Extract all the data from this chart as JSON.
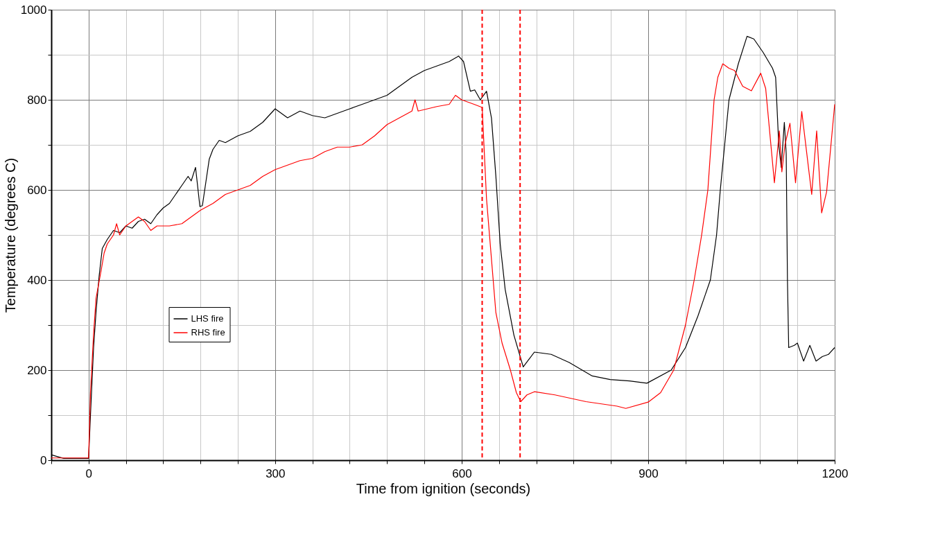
{
  "chart_data": {
    "type": "line",
    "xlabel": "Time from ignition (seconds)",
    "ylabel": "Temperature (degrees C)",
    "xlim": [
      -60,
      1200
    ],
    "ylim": [
      0,
      1000
    ],
    "xticks": [
      {
        "value": -60,
        "label": null
      },
      0,
      {
        "value": 60,
        "label": null
      },
      {
        "value": 120,
        "label": null
      },
      {
        "value": 180,
        "label": null
      },
      {
        "value": 240,
        "label": null
      },
      300,
      {
        "value": 360,
        "label": null
      },
      {
        "value": 420,
        "label": null
      },
      {
        "value": 480,
        "label": null
      },
      {
        "value": 540,
        "label": null
      },
      600,
      {
        "value": 660,
        "label": null
      },
      {
        "value": 720,
        "label": null
      },
      {
        "value": 780,
        "label": null
      },
      {
        "value": 840,
        "label": null
      },
      900,
      {
        "value": 960,
        "label": null
      },
      {
        "value": 1020,
        "label": null
      },
      {
        "value": 1080,
        "label": null
      },
      {
        "value": 1140,
        "label": null
      },
      1200
    ],
    "yticks": [
      0,
      {
        "value": 100,
        "label": null
      },
      200,
      {
        "value": 300,
        "label": null
      },
      400,
      {
        "value": 500,
        "label": null
      },
      600,
      {
        "value": 700,
        "label": null
      },
      800,
      {
        "value": 900,
        "label": null
      },
      1000
    ],
    "grid": true,
    "legend": "left",
    "ref_lines": [
      {
        "axis": "x",
        "value": 633,
        "color": "#ff0000",
        "line_style": "dashed"
      },
      {
        "axis": "x",
        "value": 694,
        "color": "#ff0000",
        "line_style": "dashed"
      }
    ],
    "series": [
      {
        "name": "LHS fire",
        "color": "#000000",
        "x": [
          -60,
          -50,
          -40,
          0,
          3,
          8,
          12,
          17,
          22,
          30,
          40,
          50,
          60,
          70,
          80,
          90,
          100,
          110,
          120,
          130,
          140,
          150,
          160,
          165,
          172,
          179,
          183,
          194,
          200,
          210,
          220,
          240,
          260,
          280,
          300,
          310,
          320,
          340,
          360,
          380,
          400,
          420,
          440,
          460,
          480,
          500,
          520,
          540,
          560,
          580,
          595,
          603,
          614,
          621,
          630,
          640,
          648,
          655,
          662,
          670,
          684,
          699,
          717,
          744,
          773,
          810,
          839,
          870,
          898,
          937,
          960,
          980,
          1000,
          1010,
          1016,
          1023,
          1030,
          1045,
          1059,
          1070,
          1085,
          1100,
          1105,
          1110,
          1114,
          1119,
          1122,
          1124,
          1126,
          1135,
          1140,
          1150,
          1160,
          1170,
          1180,
          1190,
          1200
        ],
        "values": [
          12,
          8,
          4,
          4,
          100,
          250,
          330,
          410,
          470,
          490,
          510,
          505,
          520,
          515,
          530,
          535,
          525,
          545,
          560,
          570,
          590,
          610,
          630,
          620,
          650,
          563,
          565,
          668,
          690,
          710,
          705,
          720,
          730,
          750,
          780,
          770,
          760,
          775,
          765,
          760,
          770,
          780,
          790,
          800,
          810,
          830,
          850,
          865,
          875,
          885,
          897,
          885,
          819,
          822,
          800,
          819,
          759,
          631,
          480,
          379,
          278,
          207,
          240,
          235,
          217,
          187,
          179,
          176,
          171,
          200,
          250,
          320,
          400,
          500,
          600,
          700,
          800,
          880,
          941,
          935,
          905,
          870,
          850,
          700,
          650,
          750,
          680,
          400,
          250,
          255,
          260,
          220,
          255,
          220,
          230,
          235,
          250
        ]
      },
      {
        "name": "RHS fire",
        "color": "#ff0000",
        "x": [
          -60,
          -40,
          0,
          3,
          8,
          12,
          20,
          25,
          30,
          40,
          45,
          50,
          60,
          70,
          80,
          90,
          100,
          110,
          130,
          150,
          170,
          180,
          200,
          220,
          240,
          260,
          280,
          300,
          320,
          340,
          360,
          380,
          400,
          420,
          440,
          460,
          480,
          500,
          520,
          525,
          530,
          560,
          580,
          590,
          600,
          620,
          633,
          640,
          655,
          665,
          678,
          688,
          695,
          705,
          717,
          750,
          800,
          850,
          864,
          900,
          920,
          941,
          960,
          974,
          986,
          996,
          1001,
          1006,
          1012,
          1020,
          1030,
          1039,
          1052,
          1066,
          1081,
          1089,
          1103,
          1111,
          1115,
          1120,
          1128,
          1137,
          1147,
          1163,
          1171,
          1179,
          1187,
          1200
        ],
        "values": [
          5,
          5,
          5,
          150,
          280,
          360,
          420,
          460,
          480,
          500,
          525,
          500,
          520,
          530,
          540,
          530,
          510,
          520,
          520,
          525,
          545,
          555,
          570,
          590,
          600,
          610,
          630,
          645,
          655,
          665,
          670,
          685,
          695,
          695,
          700,
          720,
          745,
          760,
          775,
          800,
          775,
          785,
          790,
          810,
          800,
          790,
          783,
          580,
          328,
          260,
          202,
          150,
          130,
          145,
          152,
          145,
          130,
          120,
          115,
          129,
          150,
          200,
          300,
          400,
          500,
          600,
          700,
          800,
          850,
          880,
          870,
          865,
          830,
          820,
          859,
          825,
          616,
          731,
          640,
          700,
          748,
          616,
          774,
          590,
          731,
          549,
          596,
          790
        ]
      }
    ]
  }
}
